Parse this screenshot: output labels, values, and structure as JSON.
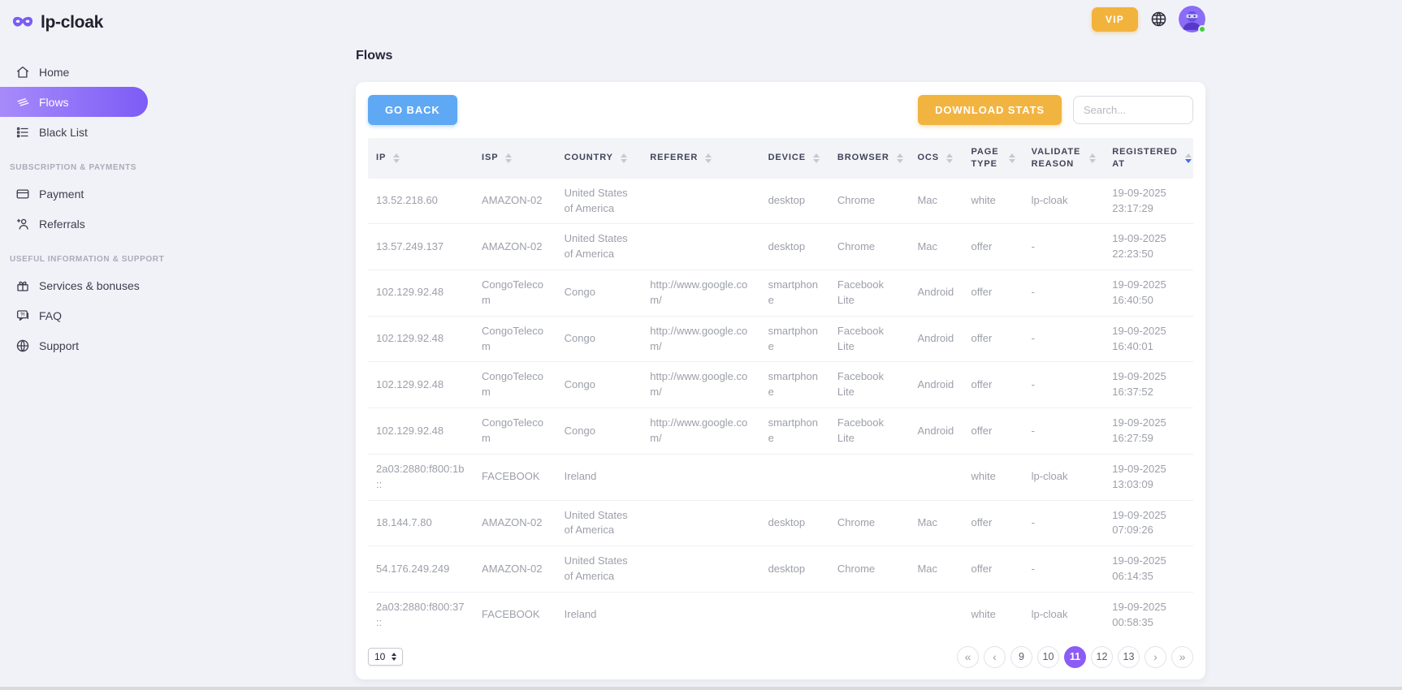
{
  "brand": {
    "name": "lp-cloak"
  },
  "topbar": {
    "vip_label": "VIP"
  },
  "page": {
    "title": "Flows"
  },
  "toolbar": {
    "go_back": "GO BACK",
    "download_stats": "DOWNLOAD STATS",
    "search_placeholder": "Search...",
    "search_value": ""
  },
  "sidebar": {
    "sections": [
      {
        "label": "",
        "items": [
          {
            "icon": "home-icon",
            "label": "Home",
            "active": false
          },
          {
            "icon": "flows-icon",
            "label": "Flows",
            "active": true
          },
          {
            "icon": "blacklist-icon",
            "label": "Black List",
            "active": false
          }
        ]
      },
      {
        "label": "Subscription & payments",
        "items": [
          {
            "icon": "payment-icon",
            "label": "Payment",
            "active": false
          },
          {
            "icon": "referrals-icon",
            "label": "Referrals",
            "active": false
          }
        ]
      },
      {
        "label": "Useful information & support",
        "items": [
          {
            "icon": "services-icon",
            "label": "Services & bonuses",
            "active": false
          },
          {
            "icon": "faq-icon",
            "label": "FAQ",
            "active": false
          },
          {
            "icon": "support-icon",
            "label": "Support",
            "active": false
          }
        ]
      }
    ]
  },
  "table": {
    "columns": [
      "IP",
      "ISP",
      "COUNTRY",
      "REFERER",
      "DEVICE",
      "BROWSER",
      "OCS",
      "PAGE TYPE",
      "VALIDATE REASON",
      "REGISTERED AT"
    ],
    "sorted_column": "REGISTERED AT",
    "sort_direction": "desc",
    "rows": [
      [
        "13.52.218.60",
        "AMAZON-02",
        "United States of America",
        "",
        "desktop",
        "Chrome",
        "Mac",
        "white",
        "lp-cloak",
        "19-09-2025 23:17:29"
      ],
      [
        "13.57.249.137",
        "AMAZON-02",
        "United States of America",
        "",
        "desktop",
        "Chrome",
        "Mac",
        "offer",
        "-",
        "19-09-2025 22:23:50"
      ],
      [
        "102.129.92.48",
        "CongoTelecom",
        "Congo",
        "http://www.google.com/",
        "smartphone",
        "Facebook Lite",
        "Android",
        "offer",
        "-",
        "19-09-2025 16:40:50"
      ],
      [
        "102.129.92.48",
        "CongoTelecom",
        "Congo",
        "http://www.google.com/",
        "smartphone",
        "Facebook Lite",
        "Android",
        "offer",
        "-",
        "19-09-2025 16:40:01"
      ],
      [
        "102.129.92.48",
        "CongoTelecom",
        "Congo",
        "http://www.google.com/",
        "smartphone",
        "Facebook Lite",
        "Android",
        "offer",
        "-",
        "19-09-2025 16:37:52"
      ],
      [
        "102.129.92.48",
        "CongoTelecom",
        "Congo",
        "http://www.google.com/",
        "smartphone",
        "Facebook Lite",
        "Android",
        "offer",
        "-",
        "19-09-2025 16:27:59"
      ],
      [
        "2a03:2880:f800:1b::",
        "FACEBOOK",
        "Ireland",
        "",
        "",
        "",
        "",
        "white",
        "lp-cloak",
        "19-09-2025 13:03:09"
      ],
      [
        "18.144.7.80",
        "AMAZON-02",
        "United States of America",
        "",
        "desktop",
        "Chrome",
        "Mac",
        "offer",
        "-",
        "19-09-2025 07:09:26"
      ],
      [
        "54.176.249.249",
        "AMAZON-02",
        "United States of America",
        "",
        "desktop",
        "Chrome",
        "Mac",
        "offer",
        "-",
        "19-09-2025 06:14:35"
      ],
      [
        "2a03:2880:f800:37::",
        "FACEBOOK",
        "Ireland",
        "",
        "",
        "",
        "",
        "white",
        "lp-cloak",
        "19-09-2025 00:58:35"
      ]
    ]
  },
  "pagination": {
    "page_size": "10",
    "buttons": [
      "«",
      "‹",
      "9",
      "10",
      "11",
      "12",
      "13",
      "›",
      "»"
    ],
    "button_names": [
      "first-page",
      "prev-page",
      "page-9",
      "page-10",
      "page-11",
      "page-12",
      "page-13",
      "next-page",
      "last-page"
    ],
    "active_page": "11"
  },
  "colors": {
    "accent_purple": "#8b5cf6",
    "sidebar_gradient_start": "#a78bfa",
    "sidebar_gradient_end": "#7c5cf6",
    "vip_orange": "#f2b33d",
    "download_orange": "#f2b441",
    "goback_blue": "#5fa8f4",
    "sort_active_blue": "#4f68e8",
    "online_green": "#3ecf3e",
    "page_background": "#f1f2f7",
    "table_header_bg": "#f3f4f7",
    "row_text": "#9da0aa"
  }
}
